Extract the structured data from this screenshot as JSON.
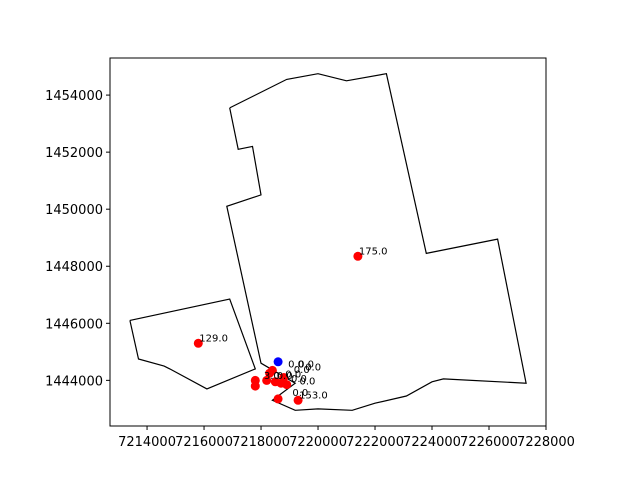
{
  "chart_data": {
    "type": "scatter",
    "title": "",
    "xlabel": "",
    "ylabel": "",
    "xlim": [
      7212700,
      7228000
    ],
    "ylim": [
      1442400,
      1455300
    ],
    "x_ticks": [
      7214000,
      7216000,
      7218000,
      7220000,
      7222000,
      7224000,
      7226000,
      7228000
    ],
    "y_ticks": [
      1444000,
      1446000,
      1448000,
      1450000,
      1452000,
      1454000
    ],
    "grid": false,
    "colors": {
      "boundary": "#000000",
      "points": "#ff0000",
      "highlight": "#0000ff"
    },
    "boundaries": [
      {
        "name": "",
        "points": [
          [
            7216900,
            1453550
          ],
          [
            7218900,
            1454550
          ],
          [
            7220000,
            1454750
          ],
          [
            7221000,
            1454500
          ],
          [
            7222400,
            1454750
          ],
          [
            7223800,
            1448450
          ],
          [
            7226300,
            1448950
          ],
          [
            7227300,
            1443900
          ],
          [
            7224400,
            1444050
          ],
          [
            7224000,
            1443950
          ],
          [
            7223100,
            1443450
          ],
          [
            7222000,
            1443200
          ],
          [
            7221200,
            1442950
          ],
          [
            7220000,
            1443000
          ],
          [
            7219200,
            1442950
          ],
          [
            7218400,
            1443300
          ],
          [
            7219200,
            1443900
          ],
          [
            7218000,
            1444600
          ],
          [
            7216800,
            1450100
          ],
          [
            7218000,
            1450500
          ],
          [
            7217700,
            1452200
          ],
          [
            7217200,
            1452100
          ],
          [
            7216900,
            1453550
          ]
        ]
      },
      {
        "name": "",
        "points": [
          [
            7213400,
            1446100
          ],
          [
            7216900,
            1446850
          ],
          [
            7217800,
            1444400
          ],
          [
            7216100,
            1443700
          ],
          [
            7214800,
            1444400
          ],
          [
            7214600,
            1444500
          ],
          [
            7213700,
            1444750
          ],
          [
            7213400,
            1446100
          ]
        ]
      }
    ],
    "series": [
      {
        "points": [
          {
            "x": 7221400,
            "y": 1448350,
            "label": "175.0"
          },
          {
            "x": 7215800,
            "y": 1445300,
            "label": "129.0"
          },
          {
            "x": 7219300,
            "y": 1443300,
            "label": "153.0"
          },
          {
            "x": 7218600,
            "y": 1443350,
            "label": ""
          },
          {
            "x": 7217800,
            "y": 1444000,
            "label": ""
          },
          {
            "x": 7217800,
            "y": 1443800,
            "label": ""
          },
          {
            "x": 7218300,
            "y": 1444250,
            "label": ""
          },
          {
            "x": 7218200,
            "y": 1444000,
            "label": ""
          },
          {
            "x": 7218500,
            "y": 1443950,
            "label": ""
          },
          {
            "x": 7218700,
            "y": 1443900,
            "label": ""
          },
          {
            "x": 7218800,
            "y": 1444100,
            "label": ""
          },
          {
            "x": 7218400,
            "y": 1444350,
            "label": ""
          },
          {
            "x": 7218900,
            "y": 1443850,
            "label": ""
          }
        ]
      },
      {
        "points": [
          {
            "x": 7218600,
            "y": 1444650,
            "label": ""
          }
        ]
      }
    ],
    "cluster_labels": [
      {
        "x": 7218950,
        "y": 1444450,
        "text": "0.0"
      },
      {
        "x": 7219300,
        "y": 1444450,
        "text": "0.0"
      },
      {
        "x": 7219150,
        "y": 1444250,
        "text": "0.0"
      },
      {
        "x": 7218850,
        "y": 1444100,
        "text": "0.0"
      },
      {
        "x": 7219550,
        "y": 1444350,
        "text": "0.0"
      },
      {
        "x": 7218100,
        "y": 1444050,
        "text": "3.0"
      },
      {
        "x": 7218550,
        "y": 1444050,
        "text": "0.0"
      },
      {
        "x": 7219050,
        "y": 1443950,
        "text": "0.0"
      },
      {
        "x": 7219350,
        "y": 1443850,
        "text": "0.0"
      },
      {
        "x": 7219100,
        "y": 1443450,
        "text": "0.0"
      }
    ]
  }
}
